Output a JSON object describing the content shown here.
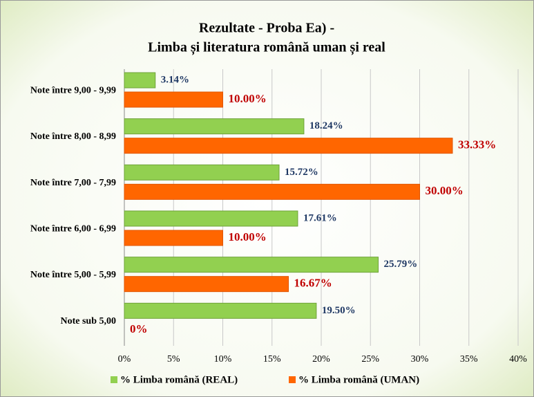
{
  "chart_data": {
    "type": "hbar",
    "title": [
      "Rezultate - Proba Ea) -",
      "Limba și literatura română  uman și real"
    ],
    "categories": [
      "Note între 9,00 - 9,99",
      "Note între 8,00 - 8,99",
      "Note între 7,00 - 7,99",
      "Note între 6,00 - 6,99",
      "Note între 5,00 - 5,99",
      "Note sub 5,00"
    ],
    "series": [
      {
        "name": "% Limba română (REAL)",
        "color": "#92d050",
        "label_color": "#1f3864",
        "values": [
          3.14,
          18.24,
          15.72,
          17.61,
          25.79,
          19.5
        ],
        "value_labels": [
          "3.14%",
          "18.24%",
          "15.72%",
          "17.61%",
          "25.79%",
          "19.50%"
        ]
      },
      {
        "name": "% Limba română (UMAN)",
        "color": "#ff6600",
        "label_color": "#c00000",
        "values": [
          10.0,
          33.33,
          30.0,
          10.0,
          16.67,
          0
        ],
        "value_labels": [
          "10.00%",
          "33.33%",
          "30.00%",
          "10.00%",
          "16.67%",
          "0%"
        ]
      }
    ],
    "xlim": [
      0,
      40
    ],
    "xticks": [
      {
        "value": 0,
        "label": "0%"
      },
      {
        "value": 5,
        "label": "5%"
      },
      {
        "value": 10,
        "label": "10%"
      },
      {
        "value": 15,
        "label": "15%"
      },
      {
        "value": 20,
        "label": "20%"
      },
      {
        "value": 25,
        "label": "25%"
      },
      {
        "value": 30,
        "label": "30%"
      },
      {
        "value": 35,
        "label": "35%"
      },
      {
        "value": 40,
        "label": "40%"
      }
    ],
    "grid": true,
    "legend": "bottom"
  }
}
